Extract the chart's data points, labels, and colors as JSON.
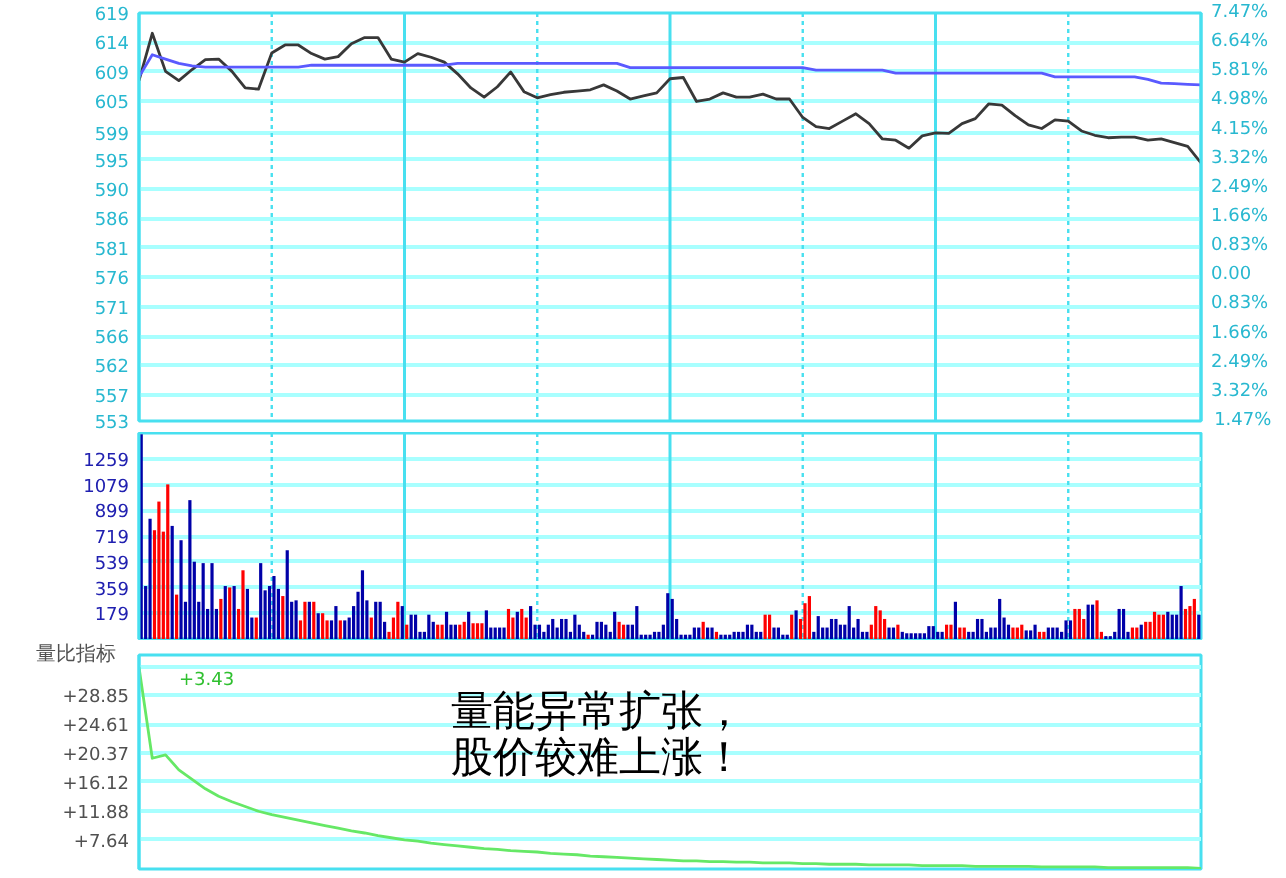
{
  "chart_data": [
    {
      "type": "line",
      "y2label": "1.47%",
      "categories": [
        null,
        null,
        null,
        null,
        null,
        null,
        null,
        null,
        null,
        null,
        null,
        null,
        null,
        null,
        null,
        null,
        null,
        null,
        null,
        null,
        null,
        null,
        null,
        null,
        null,
        null,
        null,
        null,
        null,
        null,
        null,
        null,
        null,
        null,
        null,
        null,
        null,
        null,
        null,
        null,
        null,
        null,
        null,
        null,
        null,
        null,
        null,
        null,
        null,
        null,
        null,
        null,
        null,
        null,
        null,
        null,
        null,
        null,
        null,
        null,
        null,
        null,
        null,
        null,
        null,
        null,
        null,
        null,
        null,
        null,
        null,
        null,
        null,
        null,
        null,
        null,
        null,
        null,
        null,
        null,
        null
      ],
      "series": [
        {
          "color": "#383838",
          "values": [
            608.0,
            615.7,
            609.5,
            608.0,
            609.8,
            611.4,
            611.5,
            609.5,
            606.8,
            606.6,
            612.5,
            613.8,
            613.8,
            612.4,
            611.5,
            611.9,
            614.0,
            615.0,
            615.0,
            611.5,
            611.0,
            612.4,
            611.8,
            611.0,
            609.1,
            606.8,
            605.3,
            607.0,
            609.4,
            606.2,
            605.2,
            605.7,
            606.1,
            606.3,
            606.5,
            607.3,
            606.3,
            605.0,
            605.5,
            606.0,
            608.3,
            608.5,
            604.6,
            605.0,
            606.0,
            605.3,
            605.3,
            605.8,
            605.0,
            605.0,
            602.0,
            600.5,
            600.2,
            601.4,
            602.6,
            601.0,
            598.5,
            598.3,
            597.0,
            599.0,
            599.5,
            599.4,
            601.0,
            601.8,
            604.2,
            604.0,
            602.3,
            600.8,
            600.2,
            601.6,
            601.4,
            599.8,
            599.1,
            598.7,
            598.8,
            598.8,
            598.3,
            598.5,
            597.9,
            597.3,
            594.6
          ]
        },
        {
          "color": "#5a5aff",
          "values": [
            608.6,
            612.2,
            611.5,
            610.8,
            610.4,
            610.2,
            610.2,
            610.2,
            610.2,
            610.2,
            610.2,
            610.2,
            610.2,
            610.5,
            610.5,
            610.5,
            610.5,
            610.5,
            610.5,
            610.5,
            610.5,
            610.5,
            610.5,
            610.5,
            610.8,
            610.8,
            610.8,
            610.8,
            610.8,
            610.8,
            610.8,
            610.8,
            610.8,
            610.8,
            610.8,
            610.8,
            610.8,
            610.1,
            610.1,
            610.1,
            610.1,
            610.1,
            610.1,
            610.1,
            610.1,
            610.1,
            610.1,
            610.1,
            610.1,
            610.1,
            610.1,
            609.7,
            609.7,
            609.7,
            609.7,
            609.7,
            609.7,
            609.2,
            609.2,
            609.2,
            609.2,
            609.2,
            609.2,
            609.2,
            609.2,
            609.2,
            609.2,
            609.2,
            609.2,
            608.6,
            608.6,
            608.6,
            608.6,
            608.6,
            608.6,
            608.6,
            608.2,
            607.6,
            607.5,
            607.4,
            607.3
          ]
        }
      ],
      "ylim": [
        552.6,
        619.0
      ],
      "yticks": [
        {
          "value": 619.0,
          "label": "619"
        },
        {
          "value": 614.2,
          "label": "614"
        },
        {
          "value": 609.4,
          "label": "609"
        },
        {
          "value": 604.7,
          "label": "605"
        },
        {
          "value": 599.4,
          "label": "599"
        },
        {
          "value": 595.1,
          "label": "595"
        },
        {
          "value": 590.3,
          "label": "590"
        },
        {
          "value": 585.6,
          "label": "586"
        },
        {
          "value": 580.8,
          "label": "581"
        },
        576,
        {
          "value": 571.2,
          "label": "571"
        },
        {
          "value": 566.4,
          "label": "566"
        },
        {
          "value": 561.7,
          "label": "562"
        },
        {
          "value": 556.9,
          "label": "557"
        },
        {
          "value": 552.6,
          "label": "553"
        }
      ],
      "y2lim": [
        -4.15,
        7.47
      ],
      "y2ticks": [
        {
          "value": 7.47,
          "label": "7.47%"
        },
        {
          "value": 6.64,
          "label": "6.64%"
        },
        {
          "value": 5.81,
          "label": "5.81%"
        },
        {
          "value": 4.98,
          "label": "4.98%"
        },
        {
          "value": 4.15,
          "label": "4.15%"
        },
        {
          "value": 3.32,
          "label": "3.32%"
        },
        {
          "value": 2.49,
          "label": "2.49%"
        },
        {
          "value": 1.66,
          "label": "1.66%"
        },
        {
          "value": 0.83,
          "label": "0.83%"
        },
        {
          "value": 0,
          "label": "0.00"
        },
        {
          "value": -0.83,
          "label": "0.83%"
        },
        {
          "value": -1.66,
          "label": "1.66%"
        },
        {
          "value": -2.49,
          "label": "2.49%"
        },
        {
          "value": -3.32,
          "label": "3.32%"
        }
      ],
      "grid": true
    },
    {
      "type": "bar",
      "categories": [
        null,
        null,
        null,
        null,
        null,
        null,
        null,
        null,
        null,
        null,
        null,
        null,
        null,
        null,
        null,
        null,
        null,
        null,
        null,
        null,
        null,
        null,
        null,
        null,
        null,
        null,
        null,
        null,
        null,
        null,
        null,
        null,
        null,
        null,
        null,
        null,
        null,
        null,
        null,
        null,
        null,
        null,
        null,
        null,
        null,
        null,
        null,
        null,
        null,
        null,
        null,
        null,
        null,
        null,
        null,
        null,
        null,
        null,
        null,
        null,
        null,
        null,
        null,
        null,
        null,
        null,
        null,
        null,
        null,
        null,
        null,
        null,
        null,
        null,
        null,
        null,
        null,
        null,
        null,
        null,
        null,
        null,
        null,
        null,
        null,
        null,
        null,
        null,
        null,
        null,
        null,
        null,
        null,
        null,
        null,
        null,
        null,
        null,
        null,
        null,
        null,
        null,
        null,
        null,
        null,
        null,
        null,
        null,
        null,
        null,
        null,
        null,
        null,
        null,
        null,
        null,
        null,
        null,
        null,
        null,
        null,
        null,
        null,
        null,
        null,
        null,
        null,
        null,
        null,
        null,
        null,
        null,
        null,
        null,
        null,
        null,
        null,
        null,
        null,
        null,
        null,
        null,
        null,
        null,
        null,
        null,
        null,
        null,
        null,
        null,
        null,
        null,
        null,
        null,
        null,
        null,
        null,
        null,
        null,
        null,
        null,
        null,
        null,
        null,
        null,
        null,
        null,
        null,
        null,
        null,
        null,
        null,
        null,
        null,
        null,
        null,
        null,
        null,
        null,
        null,
        null,
        null,
        null,
        null,
        null,
        null,
        null,
        null,
        null,
        null,
        null,
        null,
        null,
        null,
        null,
        null,
        null,
        null,
        null,
        null,
        null,
        null,
        null,
        null,
        null,
        null,
        null,
        null,
        null,
        null,
        null,
        null,
        null,
        null,
        null,
        null,
        null,
        null,
        null,
        null,
        null,
        null,
        null,
        null,
        null,
        null,
        null,
        null,
        null,
        null,
        null,
        null,
        null,
        null,
        null,
        null,
        null,
        null,
        null,
        null
      ],
      "values": [
        1430,
        370,
        840,
        760,
        960,
        750,
        1080,
        790,
        310,
        690,
        260,
        970,
        540,
        260,
        530,
        210,
        530,
        210,
        280,
        370,
        360,
        370,
        210,
        480,
        350,
        150,
        150,
        530,
        340,
        370,
        440,
        350,
        300,
        620,
        260,
        270,
        130,
        260,
        260,
        260,
        180,
        180,
        130,
        130,
        230,
        130,
        130,
        150,
        230,
        330,
        480,
        270,
        150,
        260,
        260,
        120,
        50,
        150,
        260,
        230,
        100,
        170,
        170,
        50,
        50,
        170,
        120,
        100,
        100,
        190,
        100,
        100,
        100,
        120,
        190,
        110,
        110,
        110,
        200,
        80,
        80,
        80,
        80,
        210,
        150,
        190,
        210,
        150,
        230,
        100,
        100,
        50,
        100,
        140,
        80,
        140,
        140,
        50,
        170,
        100,
        50,
        30,
        30,
        120,
        120,
        100,
        50,
        190,
        120,
        100,
        100,
        100,
        230,
        30,
        30,
        30,
        50,
        50,
        100,
        320,
        280,
        140,
        30,
        30,
        30,
        80,
        80,
        120,
        80,
        80,
        50,
        30,
        30,
        30,
        50,
        50,
        50,
        100,
        100,
        50,
        50,
        170,
        170,
        80,
        80,
        30,
        30,
        170,
        200,
        140,
        250,
        300,
        50,
        160,
        80,
        80,
        140,
        140,
        100,
        100,
        230,
        80,
        140,
        50,
        50,
        100,
        230,
        200,
        140,
        80,
        80,
        100,
        50,
        40,
        40,
        40,
        40,
        40,
        90,
        90,
        50,
        50,
        100,
        100,
        260,
        80,
        80,
        50,
        50,
        140,
        140,
        50,
        80,
        80,
        280,
        150,
        100,
        80,
        80,
        100,
        60,
        60,
        100,
        50,
        50,
        80,
        80,
        80,
        50,
        130,
        130,
        210,
        210,
        140,
        240,
        240,
        270,
        50,
        20,
        20,
        50,
        210,
        210,
        50,
        80,
        80,
        100,
        120,
        120,
        190,
        170,
        170,
        190,
        170,
        170,
        370,
        210,
        230,
        280,
        170
      ],
      "colors": [
        "#0000a8",
        "#0000a8",
        "#0000a8",
        "#ff0000",
        "#ff0000",
        "#ff0000",
        "#ff0000",
        "#0000a8",
        "#ff0000",
        "#0000a8",
        "#0000a8",
        "#0000a8",
        "#0000a8",
        "#0000a8",
        "#0000a8",
        "#0000a8",
        "#0000a8",
        "#0000a8",
        "#ff0000",
        "#0000a8",
        "#ff0000",
        "#0000a8",
        "#ff0000",
        "#ff0000",
        "#0000a8",
        "#0000a8",
        "#ff0000",
        "#0000a8",
        "#0000a8",
        "#0000a8",
        "#0000a8",
        "#0000a8",
        "#ff0000",
        "#0000a8",
        "#0000a8",
        "#0000a8",
        "#ff0000",
        "#ff0000",
        "#0000a8",
        "#ff0000",
        "#0000a8",
        "#ff0000",
        "#ff0000",
        "#0000a8",
        "#0000a8",
        "#ff0000",
        "#0000a8",
        "#0000a8",
        "#0000a8",
        "#0000a8",
        "#0000a8",
        "#0000a8",
        "#ff0000",
        "#0000a8",
        "#0000a8",
        "#0000a8",
        "#ff0000",
        "#ff0000",
        "#ff0000",
        "#0000a8",
        "#ff0000",
        "#0000a8",
        "#0000a8",
        "#0000a8",
        "#0000a8",
        "#0000a8",
        "#0000a8",
        "#ff0000",
        "#ff0000",
        "#0000a8",
        "#0000a8",
        "#0000a8",
        "#ff0000",
        "#ff0000",
        "#0000a8",
        "#ff0000",
        "#ff0000",
        "#ff0000",
        "#0000a8",
        "#0000a8",
        "#0000a8",
        "#0000a8",
        "#0000a8",
        "#ff0000",
        "#ff0000",
        "#0000a8",
        "#ff0000",
        "#ff0000",
        "#0000a8",
        "#0000a8",
        "#0000a8",
        "#0000a8",
        "#0000a8",
        "#0000a8",
        "#0000a8",
        "#0000a8",
        "#0000a8",
        "#0000a8",
        "#0000a8",
        "#0000a8",
        "#0000a8",
        "#ff0000",
        "#0000a8",
        "#0000a8",
        "#0000a8",
        "#0000a8",
        "#0000a8",
        "#0000a8",
        "#ff0000",
        "#ff0000",
        "#0000a8",
        "#0000a8",
        "#0000a8",
        "#0000a8",
        "#0000a8",
        "#0000a8",
        "#0000a8",
        "#0000a8",
        "#0000a8",
        "#0000a8",
        "#0000a8",
        "#0000a8",
        "#0000a8",
        "#0000a8",
        "#0000a8",
        "#0000a8",
        "#0000a8",
        "#ff0000",
        "#0000a8",
        "#0000a8",
        "#ff0000",
        "#0000a8",
        "#0000a8",
        "#0000a8",
        "#0000a8",
        "#0000a8",
        "#0000a8",
        "#0000a8",
        "#0000a8",
        "#0000a8",
        "#0000a8",
        "#ff0000",
        "#ff0000",
        "#0000a8",
        "#0000a8",
        "#0000a8",
        "#0000a8",
        "#ff0000",
        "#0000a8",
        "#ff0000",
        "#ff0000",
        "#ff0000",
        "#0000a8",
        "#0000a8",
        "#0000a8",
        "#0000a8",
        "#0000a8",
        "#0000a8",
        "#0000a8",
        "#0000a8",
        "#0000a8",
        "#0000a8",
        "#0000a8",
        "#0000a8",
        "#0000a8",
        "#ff0000",
        "#ff0000",
        "#ff0000",
        "#ff0000",
        "#0000a8",
        "#0000a8",
        "#ff0000",
        "#0000a8",
        "#0000a8",
        "#0000a8",
        "#0000a8",
        "#0000a8",
        "#0000a8",
        "#0000a8",
        "#0000a8",
        "#0000a8",
        "#0000a8",
        "#ff0000",
        "#ff0000",
        "#0000a8",
        "#ff0000",
        "#ff0000",
        "#0000a8",
        "#0000a8",
        "#0000a8",
        "#0000a8",
        "#0000a8",
        "#0000a8",
        "#0000a8",
        "#0000a8",
        "#0000a8",
        "#0000a8",
        "#ff0000",
        "#ff0000",
        "#ff0000",
        "#0000a8",
        "#0000a8",
        "#0000a8",
        "#ff0000",
        "#ff0000",
        "#0000a8",
        "#0000a8",
        "#0000a8",
        "#0000a8",
        "#0000a8",
        "#0000a8",
        "#ff0000",
        "#ff0000",
        "#ff0000",
        "#0000a8",
        "#0000a8",
        "#ff0000",
        "#ff0000",
        "#0000a8",
        "#0000a8",
        "#0000a8",
        "#0000a8",
        "#0000a8",
        "#0000a8",
        "#ff0000",
        "#ff0000",
        "#0000a8",
        "#ff0000",
        "#ff0000",
        "#ff0000",
        "#ff0000",
        "#ff0000",
        "#0000a8",
        "#0000a8",
        "#0000a8",
        "#0000a8",
        "#ff0000",
        "#ff0000",
        "#ff0000",
        "#0000a8"
      ],
      "ylim": [
        0,
        1439
      ],
      "yticks": [
        179,
        359,
        539,
        719,
        899,
        1079,
        1259
      ],
      "grid": true
    },
    {
      "type": "line",
      "title": "量比指标",
      "subtitle": "+3.43",
      "annotations": [
        "量能异常扩张，",
        "股价较难上涨！"
      ],
      "categories": [
        null,
        null,
        null,
        null,
        null,
        null,
        null,
        null,
        null,
        null,
        null,
        null,
        null,
        null,
        null,
        null,
        null,
        null,
        null,
        null,
        null,
        null,
        null,
        null,
        null,
        null,
        null,
        null,
        null,
        null,
        null,
        null,
        null,
        null,
        null,
        null,
        null,
        null,
        null,
        null,
        null,
        null,
        null,
        null,
        null,
        null,
        null,
        null,
        null,
        null,
        null,
        null,
        null,
        null,
        null,
        null,
        null,
        null,
        null,
        null,
        null,
        null,
        null,
        null,
        null,
        null,
        null,
        null,
        null,
        null,
        null,
        null,
        null,
        null,
        null,
        null,
        null,
        null,
        null,
        null,
        null
      ],
      "series": [
        {
          "color": "#66e866",
          "values": [
            33.0,
            19.6,
            20.1,
            17.9,
            16.5,
            15.1,
            14.0,
            13.2,
            12.5,
            11.8,
            11.3,
            10.9,
            10.5,
            10.1,
            9.7,
            9.3,
            8.9,
            8.6,
            8.2,
            7.9,
            7.6,
            7.4,
            7.1,
            6.9,
            6.7,
            6.5,
            6.3,
            6.2,
            6.0,
            5.9,
            5.8,
            5.6,
            5.5,
            5.4,
            5.2,
            5.1,
            5.0,
            4.9,
            4.8,
            4.7,
            4.6,
            4.5,
            4.5,
            4.4,
            4.4,
            4.3,
            4.3,
            4.2,
            4.2,
            4.2,
            4.1,
            4.1,
            4.0,
            4.0,
            4.0,
            3.9,
            3.9,
            3.9,
            3.9,
            3.8,
            3.8,
            3.8,
            3.8,
            3.7,
            3.7,
            3.7,
            3.7,
            3.7,
            3.6,
            3.6,
            3.6,
            3.6,
            3.6,
            3.5,
            3.5,
            3.5,
            3.5,
            3.5,
            3.5,
            3.5,
            3.4
          ]
        }
      ],
      "ylim": [
        3.3,
        34.8
      ],
      "yticks": [
        {
          "value": 7.64,
          "label": "+7.64"
        },
        {
          "value": 11.88,
          "label": "+11.88"
        },
        {
          "value": 16.12,
          "label": "+16.12"
        },
        {
          "value": 20.37,
          "label": "+20.37"
        },
        {
          "value": 24.61,
          "label": "+24.61"
        },
        {
          "value": 28.85,
          "label": "+28.85"
        },
        {
          "value": 33.09,
          "label": null
        }
      ],
      "grid": "y"
    }
  ]
}
